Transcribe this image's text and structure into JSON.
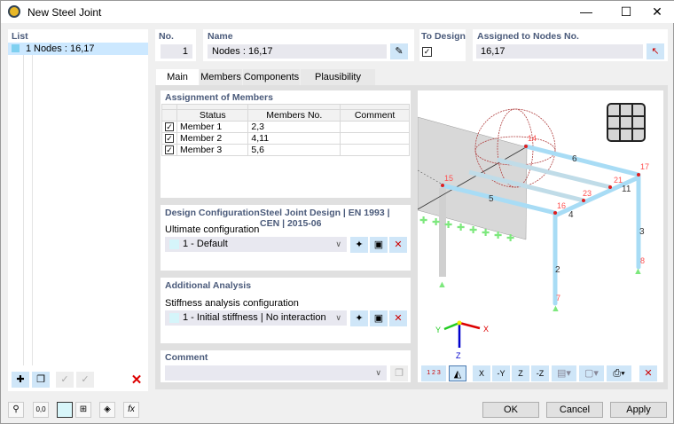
{
  "window": {
    "title": "New Steel Joint",
    "minimize": "—",
    "maximize": "☐",
    "close": "✕"
  },
  "list": {
    "header": "List",
    "items": [
      {
        "no": "1",
        "label": "Nodes : 16,17"
      }
    ]
  },
  "no": {
    "label": "No.",
    "value": "1"
  },
  "name": {
    "label": "Name",
    "value": "Nodes : 16,17"
  },
  "to_design": {
    "label": "To Design",
    "checked": true
  },
  "assigned": {
    "label": "Assigned to Nodes No.",
    "value": "16,17"
  },
  "tabs": [
    {
      "label": "Main",
      "active": true
    },
    {
      "label": "Members"
    },
    {
      "label": "Components"
    },
    {
      "label": "Plausibility Check"
    }
  ],
  "assignment": {
    "header": "Assignment of Members",
    "columns": [
      "Status",
      "Members No.",
      "Comment"
    ],
    "rows": [
      {
        "checked": true,
        "status": "Member 1",
        "members": "2,3",
        "comment": ""
      },
      {
        "checked": true,
        "status": "Member 2",
        "members": "4,11",
        "comment": ""
      },
      {
        "checked": true,
        "status": "Member 3",
        "members": "5,6",
        "comment": ""
      }
    ]
  },
  "design_config": {
    "header": "Design Configuration",
    "standard": "Steel Joint Design | EN 1993 | CEN | 2015-06",
    "label": "Ultimate configuration",
    "value": "1 - Default"
  },
  "additional": {
    "header": "Additional Analysis",
    "label": "Stiffness analysis configuration",
    "value": "1 - Initial stiffness | No interaction"
  },
  "comment": {
    "header": "Comment",
    "value": ""
  },
  "view": {
    "node_labels": [
      "14",
      "17",
      "15",
      "16",
      "21",
      "23",
      "7",
      "8"
    ],
    "member_labels": [
      "6",
      "5",
      "4",
      "11",
      "3",
      "2"
    ],
    "axes": {
      "x": "X",
      "y": "Y",
      "z": "Z"
    },
    "toolbar": [
      "1 2 3",
      "X",
      "-Y",
      "Z",
      "-Z"
    ]
  },
  "footer": {
    "ok": "OK",
    "cancel": "Cancel",
    "apply": "Apply"
  },
  "colors": {
    "accent": "#cce8ff",
    "member": "#a8dcf5",
    "node": "#e02020",
    "support": "#7de87d"
  }
}
